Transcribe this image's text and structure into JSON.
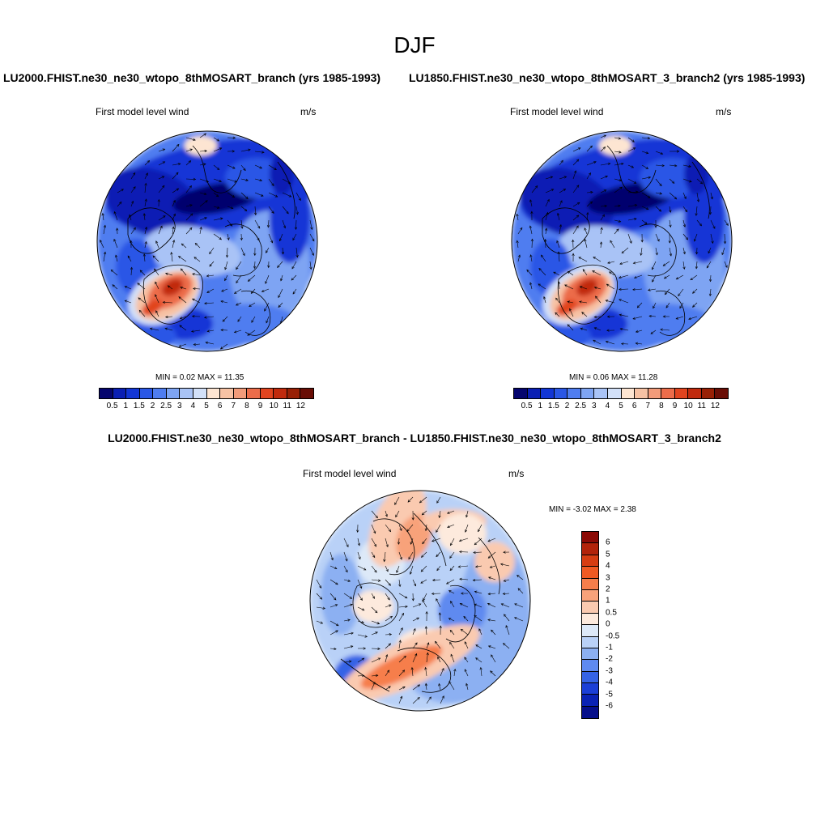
{
  "figure": {
    "season": "DJF",
    "panel1_title": "LU2000.FHIST.ne30_ne30_wtopo_8thMOSART_branch (yrs 1985-1993)",
    "panel2_title": "LU1850.FHIST.ne30_ne30_wtopo_8thMOSART_3_branch2 (yrs 1985-1993)",
    "diff_title": "LU2000.FHIST.ne30_ne30_wtopo_8thMOSART_branch - LU1850.FHIST.ne30_ne30_wtopo_8thMOSART_3_branch2"
  },
  "panels": [
    {
      "field_label": "First model level wind",
      "units": "m/s",
      "minmax_text": "MIN =   0.02 MAX =  11.35"
    },
    {
      "field_label": "First model level wind",
      "units": "m/s",
      "minmax_text": "MIN =   0.06 MAX =  11.28"
    },
    {
      "field_label": "First model level wind",
      "units": "m/s",
      "minmax_text": "MIN =  -3.02 MAX =   2.38"
    }
  ],
  "chart_data": [
    {
      "type": "heatmap",
      "map_projection": "north polar stereographic",
      "title": "LU2000.FHIST.ne30_ne30_wtopo_8thMOSART_branch (yrs 1985-1993)",
      "variable": "First model level wind",
      "units": "m/s",
      "min": 0.02,
      "max": 11.35,
      "overlay": "wind vectors",
      "colorbar_levels": [
        "0.5",
        "1",
        "1.5",
        "2",
        "2.5",
        "3",
        "4",
        "5",
        "6",
        "7",
        "8",
        "9",
        "10",
        "11",
        "12"
      ],
      "colorbar_colors": [
        "#05056e",
        "#0a1fb4",
        "#1236d6",
        "#2a57e6",
        "#4f7df0",
        "#7ea4f3",
        "#a9c3f6",
        "#d2e0f8",
        "#fde5d2",
        "#f7c2a4",
        "#f29b7a",
        "#ec6c4a",
        "#e1441f",
        "#c12a0d",
        "#982005",
        "#690d05"
      ]
    },
    {
      "type": "heatmap",
      "map_projection": "north polar stereographic",
      "title": "LU1850.FHIST.ne30_ne30_wtopo_8thMOSART_3_branch2 (yrs 1985-1993)",
      "variable": "First model level wind",
      "units": "m/s",
      "min": 0.06,
      "max": 11.28,
      "overlay": "wind vectors",
      "colorbar_levels": [
        "0.5",
        "1",
        "1.5",
        "2",
        "2.5",
        "3",
        "4",
        "5",
        "6",
        "7",
        "8",
        "9",
        "10",
        "11",
        "12"
      ],
      "colorbar_colors": [
        "#05056e",
        "#0a1fb4",
        "#1236d6",
        "#2a57e6",
        "#4f7df0",
        "#7ea4f3",
        "#a9c3f6",
        "#d2e0f8",
        "#fde5d2",
        "#f7c2a4",
        "#f29b7a",
        "#ec6c4a",
        "#e1441f",
        "#c12a0d",
        "#982005",
        "#690d05"
      ]
    },
    {
      "type": "heatmap",
      "map_projection": "north polar stereographic",
      "title": "LU2000.FHIST.ne30_ne30_wtopo_8thMOSART_branch - LU1850.FHIST.ne30_ne30_wtopo_8thMOSART_3_branch2",
      "variable": "First model level wind",
      "units": "m/s",
      "min": -3.02,
      "max": 2.38,
      "overlay": "wind vectors",
      "colorbar_levels": [
        "6",
        "5",
        "4",
        "3",
        "2",
        "1",
        "0.5",
        "0",
        "-0.5",
        "-1",
        "-2",
        "-3",
        "-4",
        "-5",
        "-6"
      ],
      "colorbar_colors": [
        "#8b0a05",
        "#b2230a",
        "#d63d12",
        "#ef5a23",
        "#f67e4b",
        "#f8a27a",
        "#facab0",
        "#fdeadd",
        "#dde9f8",
        "#b9d1f7",
        "#8cb0f2",
        "#5f8af0",
        "#3563e6",
        "#1b3fd6",
        "#0a22b4",
        "#060f8a"
      ]
    }
  ],
  "colors": {
    "coastline": "#000000",
    "vectors": "#000000"
  }
}
